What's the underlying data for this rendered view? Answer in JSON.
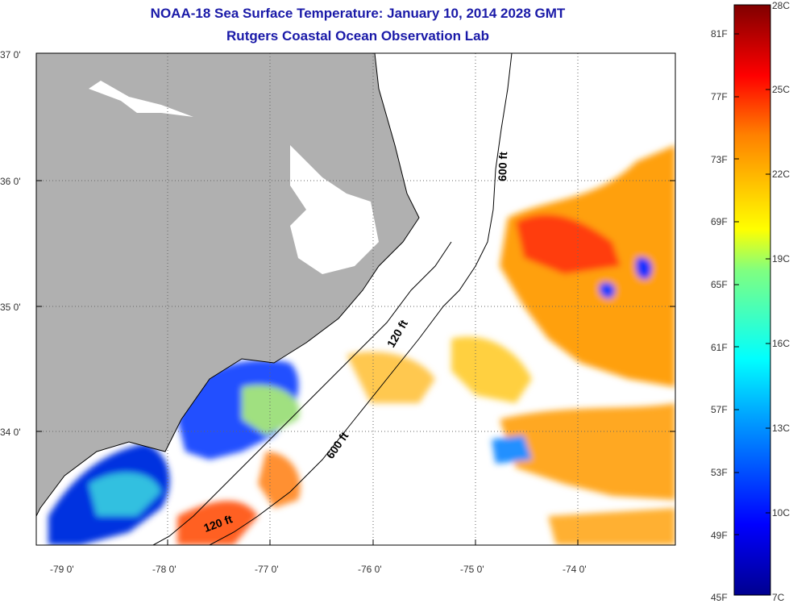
{
  "title": "NOAA-18 Sea Surface Temperature:  January 10, 2014 2028 GMT",
  "subtitle": "Rutgers Coastal Ocean Observation Lab",
  "lat_labels": [
    "37 0'",
    "36 0'",
    "35 0'",
    "34 0'"
  ],
  "lon_labels": [
    "-79 0'",
    "-78 0'",
    "-77 0'",
    "-76 0'",
    "-75 0'",
    "-74 0'"
  ],
  "colorbar": {
    "fahrenheit": [
      "81F",
      "77F",
      "73F",
      "69F",
      "65F",
      "61F",
      "57F",
      "53F",
      "49F",
      "45F"
    ],
    "celsius": [
      "28C",
      "25C",
      "22C",
      "19C",
      "16C",
      "13C",
      "10C",
      "7C"
    ]
  },
  "contours": [
    "600 ft",
    "120 ft",
    "600 ft",
    "120 ft"
  ],
  "colors": {
    "title": "#1a1aa8",
    "land": "#b0b0b0",
    "cloud": "#ffffff"
  }
}
